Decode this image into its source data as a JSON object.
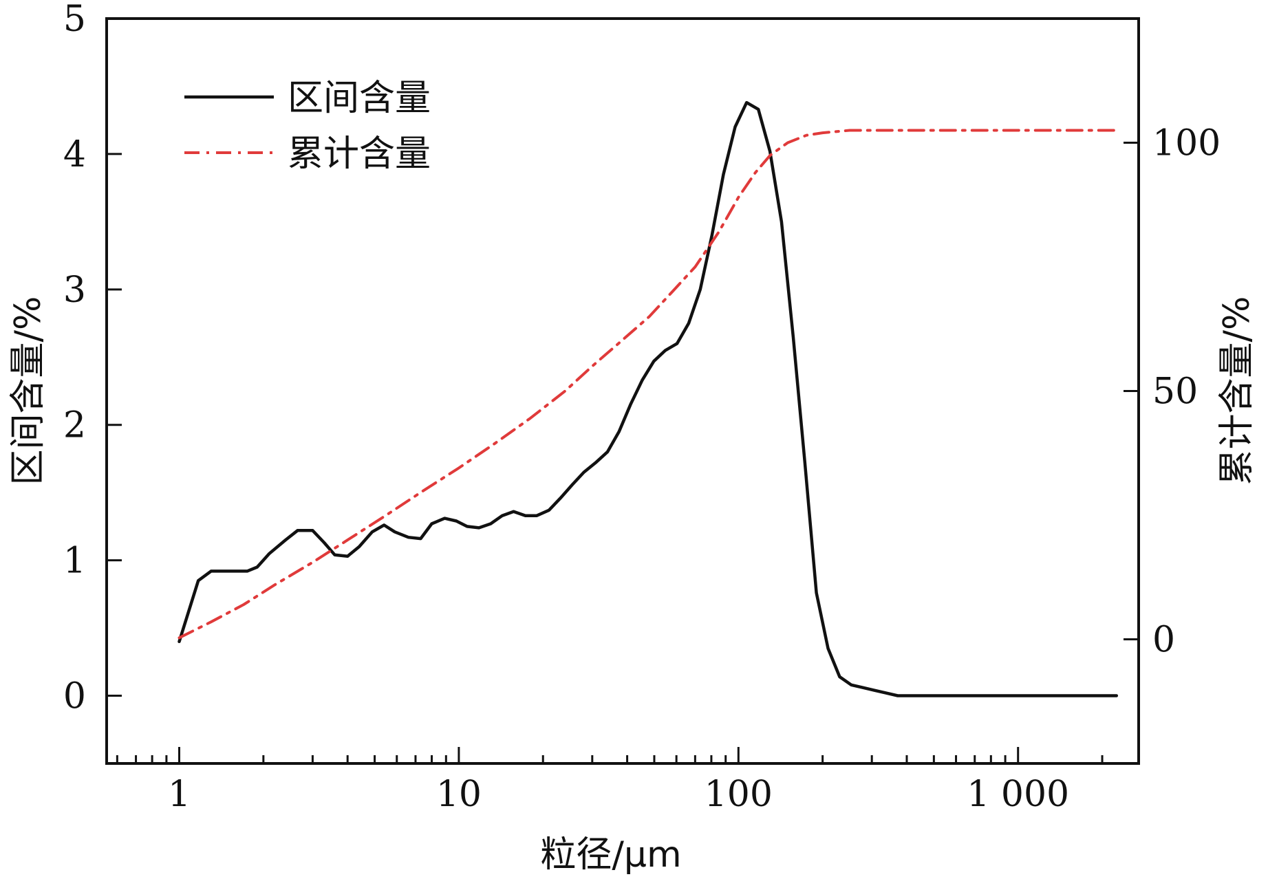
{
  "chart_data": {
    "type": "line",
    "x_scale": "log",
    "xlabel": "粒径/μm",
    "ylabel_left": "区间含量/%",
    "ylabel_right": "累计含量/%",
    "xlim": [
      0.55,
      2700
    ],
    "ylim_left": [
      -0.5,
      5
    ],
    "ylim_right": [
      -25,
      125
    ],
    "x_ticks": [
      {
        "value": 1,
        "label": "1"
      },
      {
        "value": 10,
        "label": "10"
      },
      {
        "value": 100,
        "label": "100"
      },
      {
        "value": 1000,
        "label": "1 000"
      }
    ],
    "y_left_ticks": [
      {
        "value": 0,
        "label": "0"
      },
      {
        "value": 1,
        "label": "1"
      },
      {
        "value": 2,
        "label": "2"
      },
      {
        "value": 3,
        "label": "3"
      },
      {
        "value": 4,
        "label": "4"
      },
      {
        "value": 5,
        "label": "5"
      }
    ],
    "y_right_ticks": [
      {
        "value": 0,
        "label": "0"
      },
      {
        "value": 50,
        "label": "50"
      },
      {
        "value": 100,
        "label": "100"
      }
    ],
    "legend": {
      "position": "top-left"
    },
    "series": [
      {
        "name": "区间含量",
        "axis": "left",
        "color": "#111111",
        "style": "solid",
        "x": [
          1.0,
          1.17,
          1.3,
          1.5,
          1.75,
          1.9,
          2.1,
          2.4,
          2.65,
          3.0,
          3.3,
          3.6,
          4.0,
          4.4,
          4.9,
          5.4,
          5.9,
          6.6,
          7.3,
          8.0,
          8.9,
          9.8,
          10.7,
          11.8,
          13.0,
          14.3,
          15.7,
          17.3,
          19.0,
          21.0,
          23.1,
          25.5,
          28.0,
          30.8,
          34.0,
          37.4,
          41.1,
          45.3,
          49.8,
          54.8,
          60.3,
          66.4,
          73.0,
          80.4,
          88.4,
          97.3,
          107.0,
          117.8,
          129.6,
          142.6,
          157.0,
          172.7,
          190.0,
          209.1,
          230.1,
          253.2,
          278.6,
          306.6,
          337.4,
          371.3,
          408.6,
          2250.0
        ],
        "values": [
          0.4,
          0.85,
          0.92,
          0.92,
          0.92,
          0.95,
          1.05,
          1.15,
          1.22,
          1.22,
          1.13,
          1.04,
          1.03,
          1.1,
          1.21,
          1.26,
          1.21,
          1.17,
          1.16,
          1.27,
          1.31,
          1.29,
          1.25,
          1.24,
          1.27,
          1.33,
          1.36,
          1.33,
          1.33,
          1.37,
          1.46,
          1.56,
          1.65,
          1.72,
          1.8,
          1.95,
          2.15,
          2.33,
          2.47,
          2.55,
          2.6,
          2.75,
          3.0,
          3.4,
          3.85,
          4.2,
          4.38,
          4.33,
          4.02,
          3.5,
          2.65,
          1.73,
          0.76,
          0.35,
          0.14,
          0.08,
          0.06,
          0.04,
          0.02,
          0.0,
          0.0,
          0.0
        ]
      },
      {
        "name": "累计含量",
        "axis": "right",
        "color": "#e03a3a",
        "style": "dash-dot",
        "x": [
          1.0,
          1.3,
          1.7,
          2.2,
          3.0,
          4.0,
          5.5,
          7.5,
          10.0,
          13.5,
          18.0,
          24.0,
          30.0,
          38.0,
          48.0,
          58.0,
          70.0,
          85.0,
          100.0,
          115.0,
          130.0,
          150.0,
          175.0,
          200.0,
          250.0,
          300.0,
          400.0,
          600.0,
          1000.0,
          2250.0
        ],
        "values": [
          0.3,
          3.5,
          7.0,
          11.0,
          15.5,
          20.0,
          25.0,
          30.0,
          34.5,
          39.5,
          44.5,
          50.0,
          55.0,
          60.0,
          65.0,
          70.0,
          75.0,
          82.0,
          89.0,
          94.0,
          97.5,
          100.0,
          101.5,
          102.0,
          102.5,
          102.5,
          102.5,
          102.5,
          102.5,
          102.5
        ]
      }
    ]
  }
}
